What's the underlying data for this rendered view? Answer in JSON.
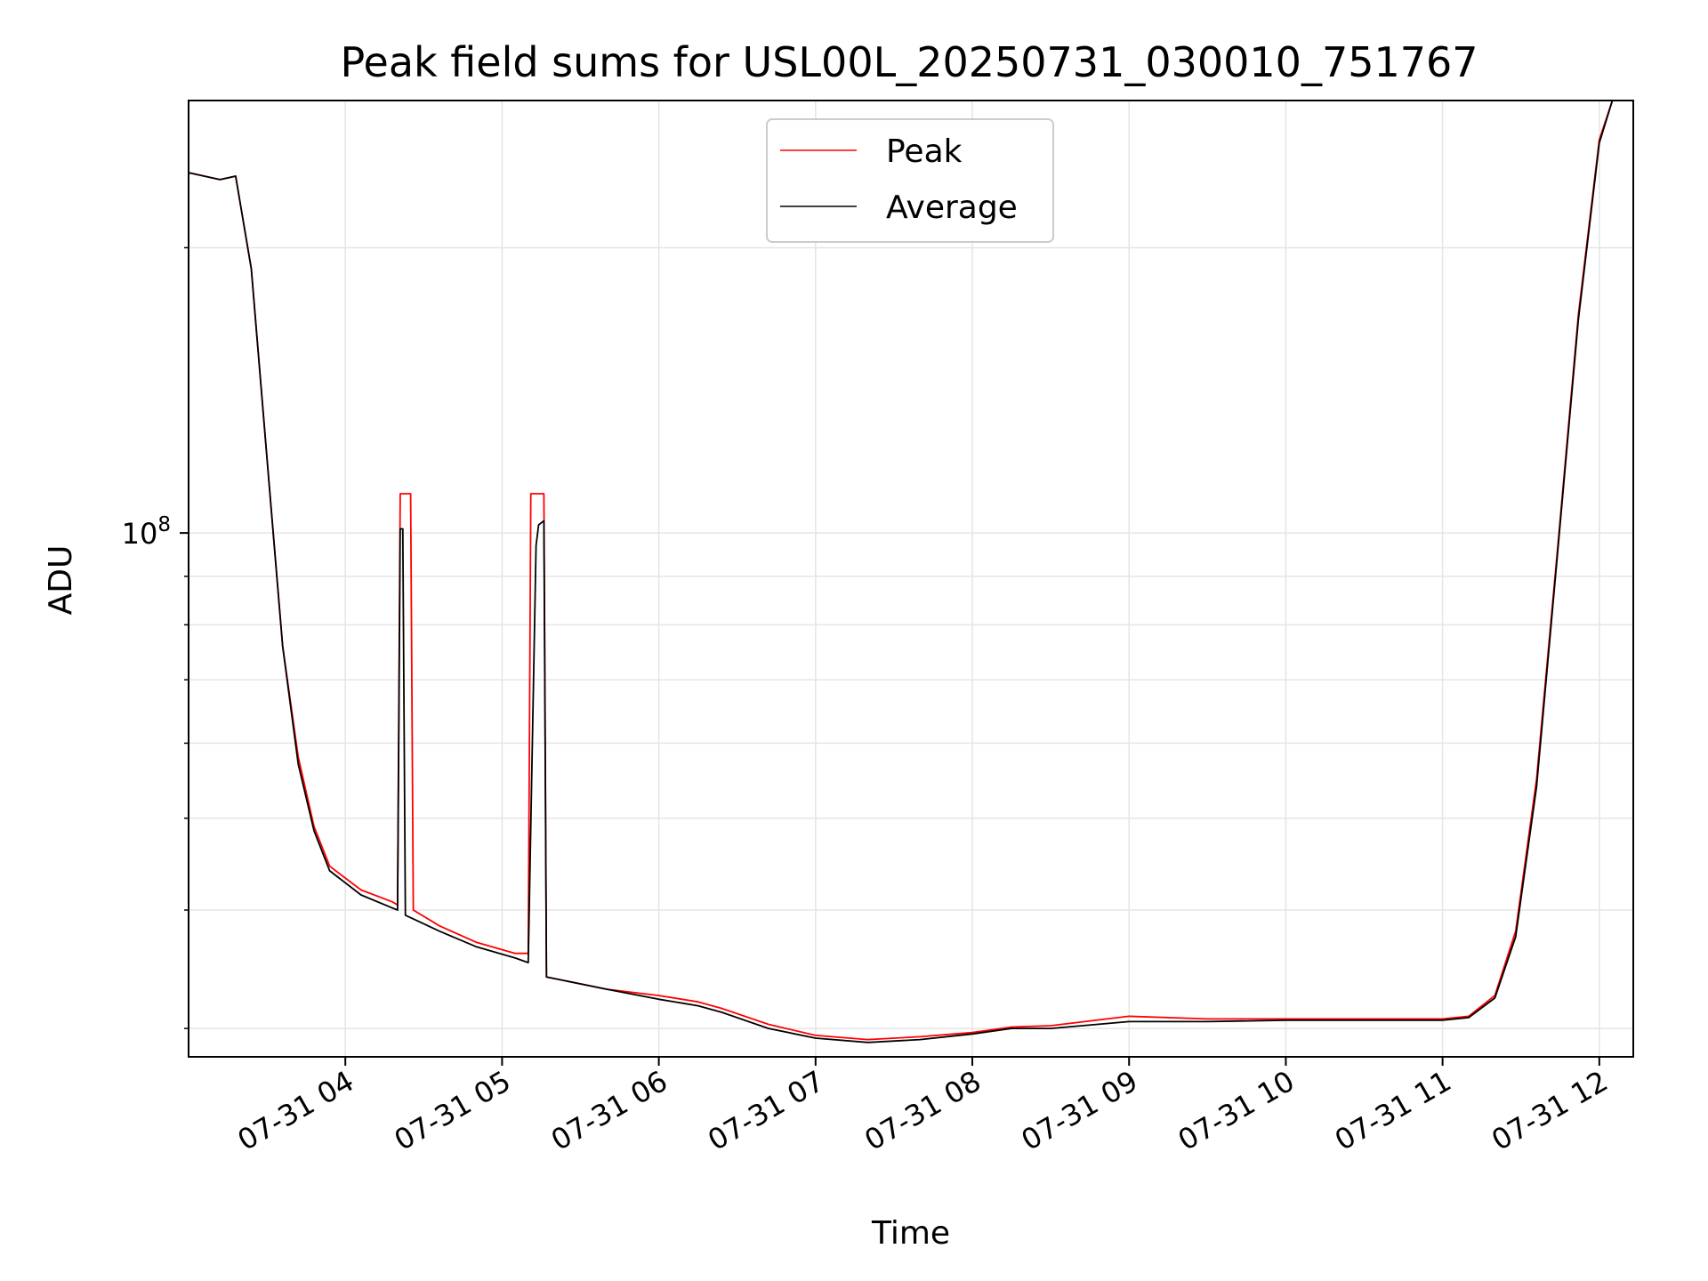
{
  "chart_data": {
    "type": "line",
    "title": "Peak field sums for USL00L_20250731_030010_751767",
    "xlabel": "Time",
    "ylabel": "ADU",
    "x_axis_type": "time",
    "y_scale": "log",
    "grid": true,
    "legend_position": "top-center",
    "xlim": [
      "2025-07-31 03:00",
      "2025-07-31 12:13"
    ],
    "ylim": [
      28000000,
      286000000
    ],
    "x_ticks": [
      {
        "t": "2025-07-31 04:00",
        "label": "07-31 04"
      },
      {
        "t": "2025-07-31 05:00",
        "label": "07-31 05"
      },
      {
        "t": "2025-07-31 06:00",
        "label": "07-31 06"
      },
      {
        "t": "2025-07-31 07:00",
        "label": "07-31 07"
      },
      {
        "t": "2025-07-31 08:00",
        "label": "07-31 08"
      },
      {
        "t": "2025-07-31 09:00",
        "label": "07-31 09"
      },
      {
        "t": "2025-07-31 10:00",
        "label": "07-31 10"
      },
      {
        "t": "2025-07-31 11:00",
        "label": "07-31 11"
      },
      {
        "t": "2025-07-31 12:00",
        "label": "07-31 12"
      }
    ],
    "y_major_ticks": [
      {
        "value": 100000000,
        "base": "10",
        "exp": "8"
      }
    ],
    "y_minor_ticks": [
      30000000,
      40000000,
      50000000,
      60000000,
      70000000,
      80000000,
      90000000,
      200000000
    ],
    "series": [
      {
        "name": "Peak",
        "color": "#ff0000",
        "points": [
          [
            "2025-07-31 03:00",
            240000000
          ],
          [
            "2025-07-31 03:12",
            236000000
          ],
          [
            "2025-07-31 03:18",
            238000000
          ],
          [
            "2025-07-31 03:24",
            190000000
          ],
          [
            "2025-07-31 03:30",
            120000000
          ],
          [
            "2025-07-31 03:36",
            76000000
          ],
          [
            "2025-07-31 03:42",
            58000000
          ],
          [
            "2025-07-31 03:48",
            49000000
          ],
          [
            "2025-07-31 03:54",
            44500000
          ],
          [
            "2025-07-31 04:06",
            42000000
          ],
          [
            "2025-07-31 04:18",
            40800000
          ],
          [
            "2025-07-31 04:20",
            40500000
          ],
          [
            "2025-07-31 04:21",
            110000000
          ],
          [
            "2025-07-31 04:25",
            110000000
          ],
          [
            "2025-07-31 04:26",
            40000000
          ],
          [
            "2025-07-31 04:36",
            38500000
          ],
          [
            "2025-07-31 04:50",
            37000000
          ],
          [
            "2025-07-31 05:05",
            36000000
          ],
          [
            "2025-07-31 05:10",
            36000000
          ],
          [
            "2025-07-31 05:11",
            110000000
          ],
          [
            "2025-07-31 05:16",
            110000000
          ],
          [
            "2025-07-31 05:17",
            34000000
          ],
          [
            "2025-07-31 05:40",
            33000000
          ],
          [
            "2025-07-31 06:00",
            32500000
          ],
          [
            "2025-07-31 06:15",
            32000000
          ],
          [
            "2025-07-31 06:24",
            31500000
          ],
          [
            "2025-07-31 06:42",
            30300000
          ],
          [
            "2025-07-31 07:00",
            29500000
          ],
          [
            "2025-07-31 07:20",
            29200000
          ],
          [
            "2025-07-31 07:40",
            29400000
          ],
          [
            "2025-07-31 08:00",
            29700000
          ],
          [
            "2025-07-31 08:15",
            30100000
          ],
          [
            "2025-07-31 08:30",
            30200000
          ],
          [
            "2025-07-31 09:00",
            30900000
          ],
          [
            "2025-07-31 09:30",
            30700000
          ],
          [
            "2025-07-31 10:00",
            30700000
          ],
          [
            "2025-07-31 10:30",
            30700000
          ],
          [
            "2025-07-31 11:00",
            30700000
          ],
          [
            "2025-07-31 11:10",
            30900000
          ],
          [
            "2025-07-31 11:20",
            32500000
          ],
          [
            "2025-07-31 11:28",
            38000000
          ],
          [
            "2025-07-31 11:36",
            55000000
          ],
          [
            "2025-07-31 11:44",
            96000000
          ],
          [
            "2025-07-31 11:52",
            170000000
          ],
          [
            "2025-07-31 12:00",
            260000000
          ],
          [
            "2025-07-31 12:05",
            286000000
          ]
        ]
      },
      {
        "name": "Average",
        "color": "#000000",
        "points": [
          [
            "2025-07-31 03:00",
            240000000
          ],
          [
            "2025-07-31 03:12",
            236000000
          ],
          [
            "2025-07-31 03:18",
            238000000
          ],
          [
            "2025-07-31 03:24",
            190000000
          ],
          [
            "2025-07-31 03:30",
            120000000
          ],
          [
            "2025-07-31 03:36",
            76000000
          ],
          [
            "2025-07-31 03:42",
            57000000
          ],
          [
            "2025-07-31 03:48",
            48500000
          ],
          [
            "2025-07-31 03:54",
            44000000
          ],
          [
            "2025-07-31 04:06",
            41500000
          ],
          [
            "2025-07-31 04:18",
            40200000
          ],
          [
            "2025-07-31 04:20",
            40000000
          ],
          [
            "2025-07-31 04:21",
            101000000
          ],
          [
            "2025-07-31 04:22",
            101000000
          ],
          [
            "2025-07-31 04:23",
            39500000
          ],
          [
            "2025-07-31 04:36",
            38000000
          ],
          [
            "2025-07-31 04:50",
            36600000
          ],
          [
            "2025-07-31 05:05",
            35600000
          ],
          [
            "2025-07-31 05:10",
            35200000
          ],
          [
            "2025-07-31 05:13",
            97000000
          ],
          [
            "2025-07-31 05:14",
            102000000
          ],
          [
            "2025-07-31 05:16",
            103000000
          ],
          [
            "2025-07-31 05:17",
            34000000
          ],
          [
            "2025-07-31 05:40",
            33000000
          ],
          [
            "2025-07-31 06:00",
            32200000
          ],
          [
            "2025-07-31 06:15",
            31700000
          ],
          [
            "2025-07-31 06:24",
            31200000
          ],
          [
            "2025-07-31 06:42",
            30000000
          ],
          [
            "2025-07-31 07:00",
            29300000
          ],
          [
            "2025-07-31 07:20",
            29000000
          ],
          [
            "2025-07-31 07:40",
            29200000
          ],
          [
            "2025-07-31 08:00",
            29600000
          ],
          [
            "2025-07-31 08:15",
            30000000
          ],
          [
            "2025-07-31 08:30",
            30000000
          ],
          [
            "2025-07-31 09:00",
            30500000
          ],
          [
            "2025-07-31 09:30",
            30500000
          ],
          [
            "2025-07-31 10:00",
            30600000
          ],
          [
            "2025-07-31 10:30",
            30600000
          ],
          [
            "2025-07-31 11:00",
            30600000
          ],
          [
            "2025-07-31 11:10",
            30800000
          ],
          [
            "2025-07-31 11:20",
            32300000
          ],
          [
            "2025-07-31 11:28",
            37500000
          ],
          [
            "2025-07-31 11:36",
            54000000
          ],
          [
            "2025-07-31 11:44",
            95000000
          ],
          [
            "2025-07-31 11:52",
            168000000
          ],
          [
            "2025-07-31 12:00",
            258000000
          ],
          [
            "2025-07-31 12:05",
            286000000
          ]
        ]
      }
    ]
  }
}
